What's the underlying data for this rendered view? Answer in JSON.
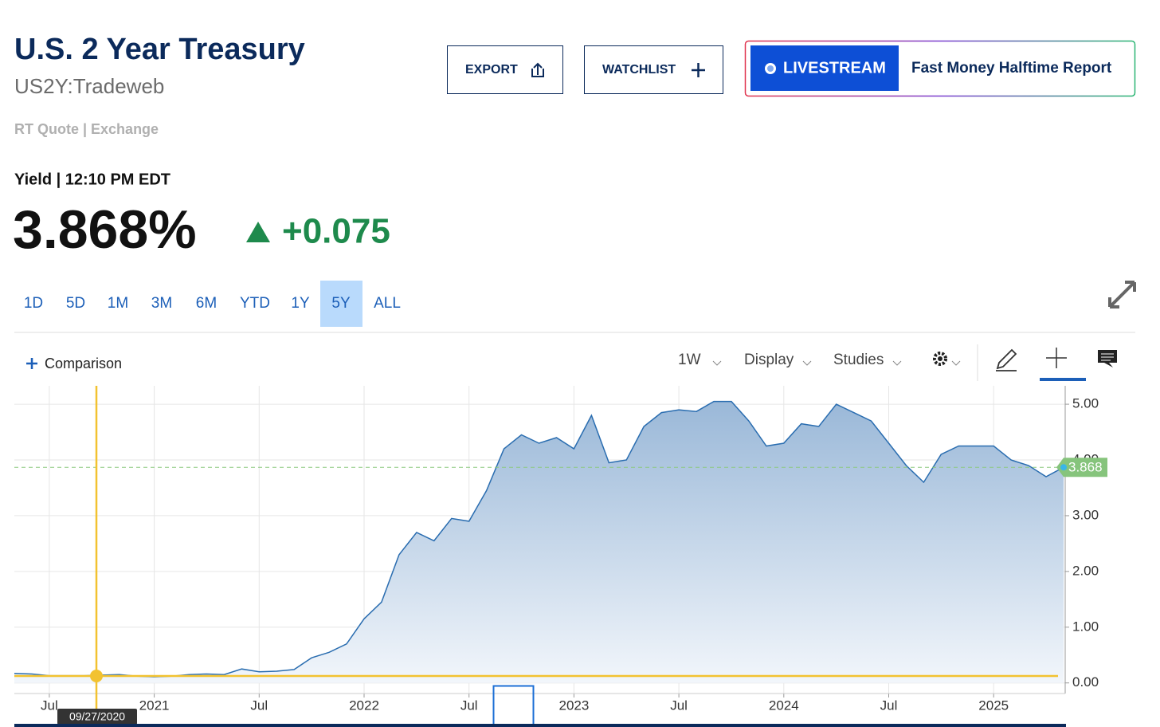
{
  "header": {
    "title": "U.S. 2 Year Treasury",
    "symbol": "US2Y:Tradeweb",
    "quote_type": "RT Quote | Exchange"
  },
  "buttons": {
    "export": "EXPORT",
    "watchlist": "WATCHLIST",
    "livestream": "LIVESTREAM",
    "show": "Fast Money Halftime Report"
  },
  "quote": {
    "label": "Yield | 12:10 PM EDT",
    "price": "3.868%",
    "change": "+0.075"
  },
  "ranges": [
    "1D",
    "5D",
    "1M",
    "3M",
    "6M",
    "YTD",
    "1Y",
    "5Y",
    "ALL"
  ],
  "selected_range": 7,
  "toolbar": {
    "comparison": "Comparison",
    "interval": "1W",
    "display": "Display",
    "studies": "Studies"
  },
  "crosshair_label": "09/27/2020",
  "chart_data": {
    "type": "area",
    "color": "#2a6db0",
    "x": [
      "2020-05",
      "2020-06",
      "2020-07",
      "2020-08",
      "2020-09",
      "2020-10",
      "2020-11",
      "2020-12",
      "2021-01",
      "2021-02",
      "2021-03",
      "2021-04",
      "2021-05",
      "2021-06",
      "2021-07",
      "2021-08",
      "2021-09",
      "2021-10",
      "2021-11",
      "2021-12",
      "2022-01",
      "2022-02",
      "2022-03",
      "2022-04",
      "2022-05",
      "2022-06",
      "2022-07",
      "2022-08",
      "2022-09",
      "2022-10",
      "2022-11",
      "2022-12",
      "2023-01",
      "2023-02",
      "2023-03",
      "2023-04",
      "2023-05",
      "2023-06",
      "2023-07",
      "2023-08",
      "2023-09",
      "2023-10",
      "2023-11",
      "2023-12",
      "2024-01",
      "2024-02",
      "2024-03",
      "2024-04",
      "2024-05",
      "2024-06",
      "2024-07",
      "2024-08",
      "2024-09",
      "2024-10",
      "2024-11",
      "2024-12",
      "2025-01",
      "2025-02",
      "2025-03",
      "2025-04",
      "2025-05"
    ],
    "values": [
      0.17,
      0.16,
      0.13,
      0.13,
      0.13,
      0.14,
      0.15,
      0.12,
      0.11,
      0.12,
      0.15,
      0.16,
      0.15,
      0.25,
      0.2,
      0.21,
      0.24,
      0.45,
      0.55,
      0.7,
      1.15,
      1.45,
      2.3,
      2.7,
      2.55,
      2.95,
      2.9,
      3.45,
      4.2,
      4.45,
      4.3,
      4.4,
      4.2,
      4.8,
      3.95,
      4.0,
      4.6,
      4.85,
      4.9,
      4.87,
      5.05,
      5.05,
      4.7,
      4.25,
      4.3,
      4.65,
      4.6,
      5.0,
      4.85,
      4.7,
      4.3,
      3.9,
      3.6,
      4.1,
      4.25,
      4.25,
      4.25,
      4.0,
      3.9,
      3.7,
      3.868
    ],
    "xlim": [
      "2020-05",
      "2025-05"
    ],
    "xticks": [
      {
        "value": "2020-07",
        "label": "Jul"
      },
      {
        "value": "2021-01",
        "label": "2021"
      },
      {
        "value": "2021-07",
        "label": "Jul"
      },
      {
        "value": "2022-01",
        "label": "2022"
      },
      {
        "value": "2022-07",
        "label": "Jul"
      },
      {
        "value": "2023-01",
        "label": "2023"
      },
      {
        "value": "2023-07",
        "label": "Jul"
      },
      {
        "value": "2024-01",
        "label": "2024"
      },
      {
        "value": "2024-07",
        "label": "Jul"
      },
      {
        "value": "2025-01",
        "label": "2025"
      }
    ],
    "ylim": [
      -0.19,
      5.33
    ],
    "yticks": [
      {
        "value": 0,
        "label": "0.00"
      },
      {
        "value": 1,
        "label": "1.00"
      },
      {
        "value": 2,
        "label": "2.00"
      },
      {
        "value": 3,
        "label": "3.00"
      },
      {
        "value": 4,
        "label": "4.00"
      },
      {
        "value": 5,
        "label": "5.00"
      }
    ],
    "grid": true
  }
}
